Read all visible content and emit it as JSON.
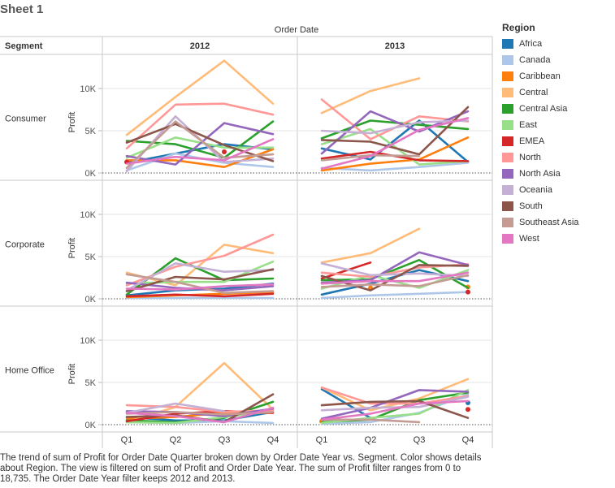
{
  "sheet_title": "Sheet 1",
  "caption": "The trend of sum of Profit for Order Date Quarter broken down by Order Date Year vs. Segment.  Color shows details about Region. The view is filtered on sum of Profit and Order Date Year. The sum of Profit filter ranges from 0 to 18,735. The Order Date Year filter keeps 2012 and 2013.",
  "chart_data": {
    "type": "line",
    "column_header": "Order Date",
    "row_header": "Segment",
    "years": [
      "2012",
      "2013"
    ],
    "segments": [
      "Consumer",
      "Corporate",
      "Home Office"
    ],
    "categories": [
      "Q1",
      "Q2",
      "Q3",
      "Q4"
    ],
    "y_axis_label": "Profit",
    "y_ticks": [
      {
        "value": 0,
        "label": "0K"
      },
      {
        "value": 5000,
        "label": "5K"
      },
      {
        "value": 10000,
        "label": "10K"
      }
    ],
    "ylim": [
      0,
      12000
    ],
    "legend_title": "Region",
    "regions": [
      {
        "name": "Africa",
        "color": "#1f77b4"
      },
      {
        "name": "Canada",
        "color": "#aec7e8"
      },
      {
        "name": "Caribbean",
        "color": "#ff7f0e"
      },
      {
        "name": "Central",
        "color": "#ffbb78"
      },
      {
        "name": "Central Asia",
        "color": "#2ca02c"
      },
      {
        "name": "East",
        "color": "#98df8a"
      },
      {
        "name": "EMEA",
        "color": "#d62728"
      },
      {
        "name": "North",
        "color": "#ff9896"
      },
      {
        "name": "North Asia",
        "color": "#9467bd"
      },
      {
        "name": "Oceania",
        "color": "#c5b0d5"
      },
      {
        "name": "South",
        "color": "#8c564b"
      },
      {
        "name": "Southeast Asia",
        "color": "#c49c94"
      },
      {
        "name": "West",
        "color": "#e377c2"
      }
    ],
    "series": [
      {
        "segment": "Consumer",
        "year": "2012",
        "region": "Africa",
        "values": [
          1200,
          2300,
          3400,
          2800
        ]
      },
      {
        "segment": "Consumer",
        "year": "2012",
        "region": "Canada",
        "values": [
          300,
          2300,
          1200,
          700
        ]
      },
      {
        "segment": "Consumer",
        "year": "2012",
        "region": "Caribbean",
        "values": [
          1500,
          1500,
          700,
          2800
        ]
      },
      {
        "segment": "Consumer",
        "year": "2012",
        "region": "Central",
        "values": [
          4500,
          9000,
          13300,
          8200
        ]
      },
      {
        "segment": "Consumer",
        "year": "2012",
        "region": "Central Asia",
        "values": [
          3800,
          3400,
          1800,
          6100
        ]
      },
      {
        "segment": "Consumer",
        "year": "2012",
        "region": "East",
        "values": [
          1800,
          4200,
          3000,
          3000
        ]
      },
      {
        "segment": "Consumer",
        "year": "2012",
        "region": "EMEA",
        "values": [
          1300,
          null,
          2500,
          null
        ]
      },
      {
        "segment": "Consumer",
        "year": "2012",
        "region": "North",
        "values": [
          2900,
          8100,
          8200,
          6900
        ]
      },
      {
        "segment": "Consumer",
        "year": "2012",
        "region": "North Asia",
        "values": [
          2000,
          1000,
          5900,
          4600
        ]
      },
      {
        "segment": "Consumer",
        "year": "2012",
        "region": "Oceania",
        "values": [
          200,
          6700,
          1300,
          1700
        ]
      },
      {
        "segment": "Consumer",
        "year": "2012",
        "region": "South",
        "values": [
          3600,
          5800,
          3300,
          1400
        ]
      },
      {
        "segment": "Consumer",
        "year": "2012",
        "region": "Southeast Asia",
        "values": [
          600,
          6100,
          1800,
          2200
        ]
      },
      {
        "segment": "Consumer",
        "year": "2012",
        "region": "West",
        "values": [
          1100,
          1900,
          1500,
          4000
        ]
      },
      {
        "segment": "Consumer",
        "year": "2013",
        "region": "Africa",
        "values": [
          2900,
          1600,
          6200,
          1300
        ]
      },
      {
        "segment": "Consumer",
        "year": "2013",
        "region": "Canada",
        "values": [
          600,
          300,
          700,
          1200
        ]
      },
      {
        "segment": "Consumer",
        "year": "2013",
        "region": "Caribbean",
        "values": [
          300,
          1100,
          1600,
          4200
        ]
      },
      {
        "segment": "Consumer",
        "year": "2013",
        "region": "Central",
        "values": [
          7100,
          9700,
          11200,
          null
        ]
      },
      {
        "segment": "Consumer",
        "year": "2013",
        "region": "Central Asia",
        "values": [
          4100,
          6200,
          5700,
          5200
        ]
      },
      {
        "segment": "Consumer",
        "year": "2013",
        "region": "East",
        "values": [
          3400,
          5200,
          1000,
          1400
        ]
      },
      {
        "segment": "Consumer",
        "year": "2013",
        "region": "EMEA",
        "values": [
          1700,
          2500,
          1500,
          1400
        ]
      },
      {
        "segment": "Consumer",
        "year": "2013",
        "region": "North",
        "values": [
          8700,
          4000,
          6700,
          6100
        ]
      },
      {
        "segment": "Consumer",
        "year": "2013",
        "region": "North Asia",
        "values": [
          2300,
          7300,
          4900,
          7300
        ]
      },
      {
        "segment": "Consumer",
        "year": "2013",
        "region": "Oceania",
        "values": [
          5000,
          4700,
          6000,
          6200
        ]
      },
      {
        "segment": "Consumer",
        "year": "2013",
        "region": "South",
        "values": [
          3900,
          3700,
          2200,
          7800
        ]
      },
      {
        "segment": "Consumer",
        "year": "2013",
        "region": "Southeast Asia",
        "values": [
          1500,
          2100,
          2000,
          null
        ]
      },
      {
        "segment": "Consumer",
        "year": "2013",
        "region": "West",
        "values": [
          500,
          2000,
          5100,
          6500
        ]
      },
      {
        "segment": "Corporate",
        "year": "2012",
        "region": "Africa",
        "values": [
          400,
          1000,
          1200,
          1800
        ]
      },
      {
        "segment": "Corporate",
        "year": "2012",
        "region": "Canada",
        "values": [
          100,
          100,
          100,
          100
        ]
      },
      {
        "segment": "Corporate",
        "year": "2012",
        "region": "Caribbean",
        "values": [
          200,
          400,
          600,
          800
        ]
      },
      {
        "segment": "Corporate",
        "year": "2012",
        "region": "Central",
        "values": [
          3100,
          1600,
          6400,
          5400
        ]
      },
      {
        "segment": "Corporate",
        "year": "2012",
        "region": "Central Asia",
        "values": [
          500,
          4800,
          2200,
          2400
        ]
      },
      {
        "segment": "Corporate",
        "year": "2012",
        "region": "East",
        "values": [
          1800,
          2000,
          2000,
          4400
        ]
      },
      {
        "segment": "Corporate",
        "year": "2012",
        "region": "EMEA",
        "values": [
          300,
          500,
          300,
          600
        ]
      },
      {
        "segment": "Corporate",
        "year": "2012",
        "region": "North",
        "values": [
          1600,
          3800,
          5100,
          7600
        ]
      },
      {
        "segment": "Corporate",
        "year": "2012",
        "region": "North Asia",
        "values": [
          1900,
          1300,
          1000,
          1500
        ]
      },
      {
        "segment": "Corporate",
        "year": "2012",
        "region": "Oceania",
        "values": [
          1000,
          4200,
          3200,
          3400
        ]
      },
      {
        "segment": "Corporate",
        "year": "2012",
        "region": "South",
        "values": [
          900,
          2600,
          2300,
          3500
        ]
      },
      {
        "segment": "Corporate",
        "year": "2012",
        "region": "Southeast Asia",
        "values": [
          2900,
          2000,
          700,
          900
        ]
      },
      {
        "segment": "Corporate",
        "year": "2012",
        "region": "West",
        "values": [
          1200,
          1100,
          1500,
          1700
        ]
      },
      {
        "segment": "Corporate",
        "year": "2013",
        "region": "Africa",
        "values": [
          500,
          1800,
          3400,
          2100
        ]
      },
      {
        "segment": "Corporate",
        "year": "2013",
        "region": "Canada",
        "values": [
          100,
          400,
          600,
          800
        ]
      },
      {
        "segment": "Corporate",
        "year": "2013",
        "region": "Caribbean",
        "values": [
          null,
          1300,
          null,
          1400
        ]
      },
      {
        "segment": "Corporate",
        "year": "2013",
        "region": "Central",
        "values": [
          4300,
          5400,
          8300,
          null
        ]
      },
      {
        "segment": "Corporate",
        "year": "2013",
        "region": "Central Asia",
        "values": [
          2200,
          2300,
          4600,
          1300
        ]
      },
      {
        "segment": "Corporate",
        "year": "2013",
        "region": "East",
        "values": [
          1200,
          2800,
          1300,
          3400
        ]
      },
      {
        "segment": "Corporate",
        "year": "2013",
        "region": "EMEA",
        "values": [
          2400,
          4300,
          null,
          800
        ]
      },
      {
        "segment": "Corporate",
        "year": "2013",
        "region": "North",
        "values": [
          3100,
          2600,
          3700,
          4100
        ]
      },
      {
        "segment": "Corporate",
        "year": "2013",
        "region": "North Asia",
        "values": [
          1900,
          2200,
          5500,
          4000
        ]
      },
      {
        "segment": "Corporate",
        "year": "2013",
        "region": "Oceania",
        "values": [
          4200,
          2800,
          3000,
          2700
        ]
      },
      {
        "segment": "Corporate",
        "year": "2013",
        "region": "South",
        "values": [
          2700,
          1000,
          4000,
          3900
        ]
      },
      {
        "segment": "Corporate",
        "year": "2013",
        "region": "Southeast Asia",
        "values": [
          1400,
          1700,
          1500,
          2800
        ]
      },
      {
        "segment": "Corporate",
        "year": "2013",
        "region": "West",
        "values": [
          1800,
          2100,
          2100,
          3100
        ]
      },
      {
        "segment": "Home Office",
        "year": "2012",
        "region": "Africa",
        "values": [
          900,
          500,
          500,
          1500
        ]
      },
      {
        "segment": "Home Office",
        "year": "2012",
        "region": "Canada",
        "values": [
          300,
          200,
          400,
          200
        ]
      },
      {
        "segment": "Home Office",
        "year": "2012",
        "region": "Caribbean",
        "values": [
          700,
          900,
          1400,
          1400
        ]
      },
      {
        "segment": "Home Office",
        "year": "2012",
        "region": "Central",
        "values": [
          300,
          2100,
          7300,
          1800
        ]
      },
      {
        "segment": "Home Office",
        "year": "2012",
        "region": "Central Asia",
        "values": [
          500,
          300,
          800,
          2700
        ]
      },
      {
        "segment": "Home Office",
        "year": "2012",
        "region": "East",
        "values": [
          300,
          200,
          900,
          1600
        ]
      },
      {
        "segment": "Home Office",
        "year": "2012",
        "region": "EMEA",
        "values": [
          400,
          1300,
          1600,
          1400
        ]
      },
      {
        "segment": "Home Office",
        "year": "2012",
        "region": "North",
        "values": [
          2300,
          2100,
          1500,
          1700
        ]
      },
      {
        "segment": "Home Office",
        "year": "2012",
        "region": "North Asia",
        "values": [
          1600,
          1500,
          1000,
          1900
        ]
      },
      {
        "segment": "Home Office",
        "year": "2012",
        "region": "Oceania",
        "values": [
          1400,
          2500,
          1600,
          null
        ]
      },
      {
        "segment": "Home Office",
        "year": "2012",
        "region": "South",
        "values": [
          900,
          1100,
          300,
          3600
        ]
      },
      {
        "segment": "Home Office",
        "year": "2012",
        "region": "Southeast Asia",
        "values": [
          1300,
          1500,
          1200,
          1500
        ]
      },
      {
        "segment": "Home Office",
        "year": "2012",
        "region": "West",
        "values": [
          1400,
          1000,
          300,
          2000
        ]
      },
      {
        "segment": "Home Office",
        "year": "2013",
        "region": "Africa",
        "values": [
          4200,
          800,
          null,
          2600
        ]
      },
      {
        "segment": "Home Office",
        "year": "2013",
        "region": "Canada",
        "values": [
          100,
          300,
          1400,
          3600
        ]
      },
      {
        "segment": "Home Office",
        "year": "2013",
        "region": "Caribbean",
        "values": [
          400,
          null,
          null,
          null
        ]
      },
      {
        "segment": "Home Office",
        "year": "2013",
        "region": "Central",
        "values": [
          4400,
          1700,
          3100,
          5400
        ]
      },
      {
        "segment": "Home Office",
        "year": "2013",
        "region": "Central Asia",
        "values": [
          300,
          600,
          2900,
          3800
        ]
      },
      {
        "segment": "Home Office",
        "year": "2013",
        "region": "East",
        "values": [
          200,
          800,
          1300,
          4100
        ]
      },
      {
        "segment": "Home Office",
        "year": "2013",
        "region": "EMEA",
        "values": [
          null,
          null,
          null,
          1800
        ]
      },
      {
        "segment": "Home Office",
        "year": "2013",
        "region": "North",
        "values": [
          4400,
          2500,
          2500,
          3400
        ]
      },
      {
        "segment": "Home Office",
        "year": "2013",
        "region": "North Asia",
        "values": [
          700,
          2000,
          4100,
          3900
        ]
      },
      {
        "segment": "Home Office",
        "year": "2013",
        "region": "Oceania",
        "values": [
          1700,
          2000,
          2100,
          3300
        ]
      },
      {
        "segment": "Home Office",
        "year": "2013",
        "region": "South",
        "values": [
          2300,
          2700,
          2800,
          800
        ]
      },
      {
        "segment": "Home Office",
        "year": "2013",
        "region": "Southeast Asia",
        "values": [
          600,
          600,
          300,
          null
        ]
      },
      {
        "segment": "Home Office",
        "year": "2013",
        "region": "West",
        "values": [
          600,
          1300,
          2500,
          2800
        ]
      }
    ]
  }
}
